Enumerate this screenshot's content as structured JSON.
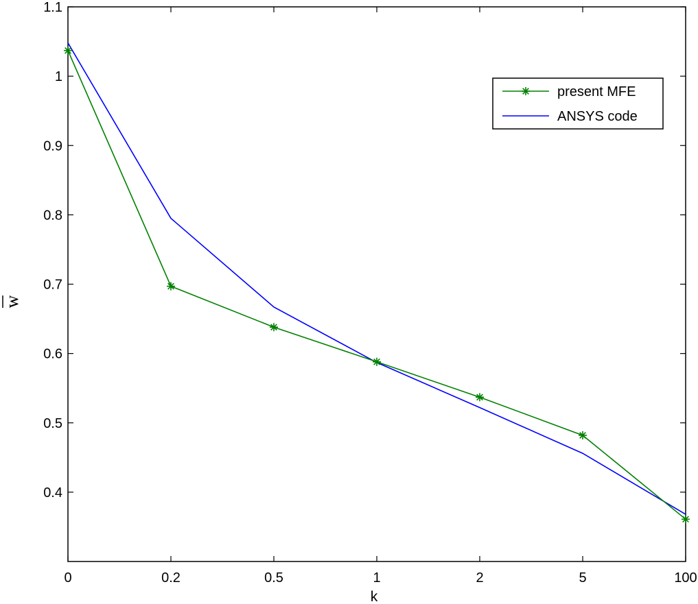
{
  "chart_data": {
    "type": "line",
    "title": "",
    "xlabel": "k",
    "ylabel": "w",
    "categories": [
      "0",
      "0.2",
      "0.5",
      "1",
      "2",
      "5",
      "100"
    ],
    "ylim": [
      0.3,
      1.1
    ],
    "yticks": [
      "0.4",
      "0.5",
      "0.6",
      "0.7",
      "0.8",
      "0.9",
      "1",
      "1.1"
    ],
    "grid": false,
    "legend_position": "top-right",
    "series": [
      {
        "name": "present MFE",
        "color": "#008000",
        "marker": "asterisk",
        "values": [
          1.037,
          0.697,
          0.638,
          0.588,
          0.537,
          0.482,
          0.361
        ]
      },
      {
        "name": "ANSYS code",
        "color": "#0000ff",
        "marker": "none",
        "values": [
          1.048,
          0.795,
          0.667,
          0.587,
          0.522,
          0.456,
          0.368
        ]
      }
    ]
  }
}
